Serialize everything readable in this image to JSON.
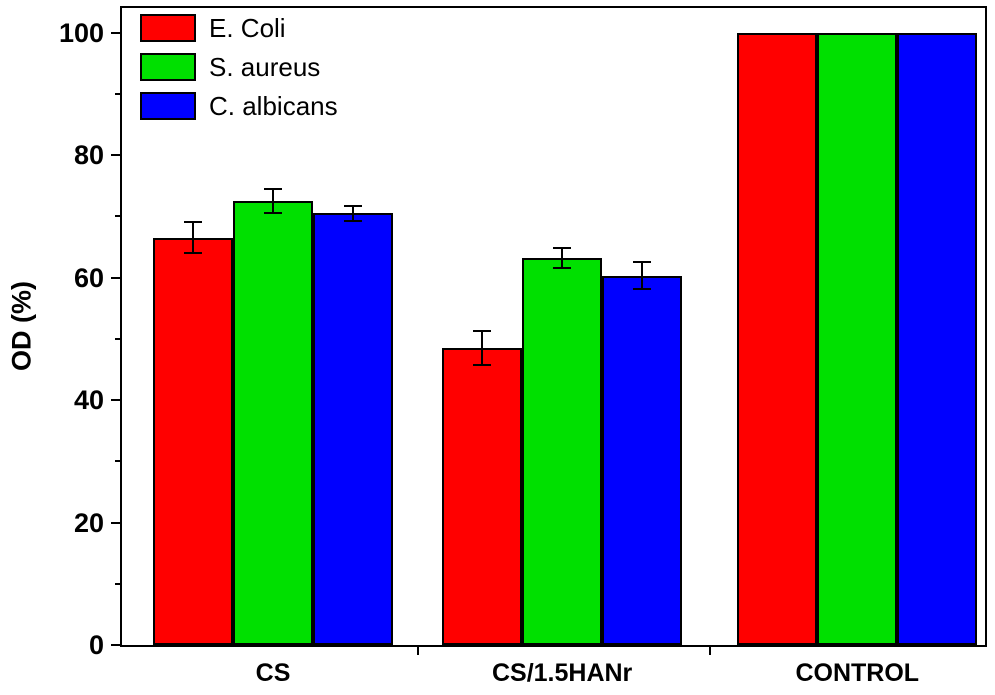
{
  "chart_data": {
    "type": "bar",
    "title": "",
    "xlabel": "",
    "ylabel": "OD (%)",
    "categories": [
      "CS",
      "CS/1.5HANr",
      "CONTROL"
    ],
    "series": [
      {
        "name": "E. Coli",
        "color": "#ff0000",
        "values": [
          66.5,
          48.5,
          100
        ],
        "errors": [
          2.5,
          2.8,
          0
        ]
      },
      {
        "name": "S. aureus",
        "color": "#00e000",
        "values": [
          72.5,
          63.2,
          100
        ],
        "errors": [
          2.0,
          1.6,
          0
        ]
      },
      {
        "name": "C. albicans",
        "color": "#0000ff",
        "values": [
          70.5,
          60.3,
          100
        ],
        "errors": [
          1.2,
          2.2,
          0
        ]
      }
    ],
    "ylim": [
      0,
      104
    ],
    "yticks": [
      0,
      20,
      40,
      60,
      80,
      100
    ],
    "minor_yticks": [
      10,
      30,
      50,
      70,
      90
    ],
    "grid": false,
    "legend_position": "top-left",
    "error_bars": true
  }
}
